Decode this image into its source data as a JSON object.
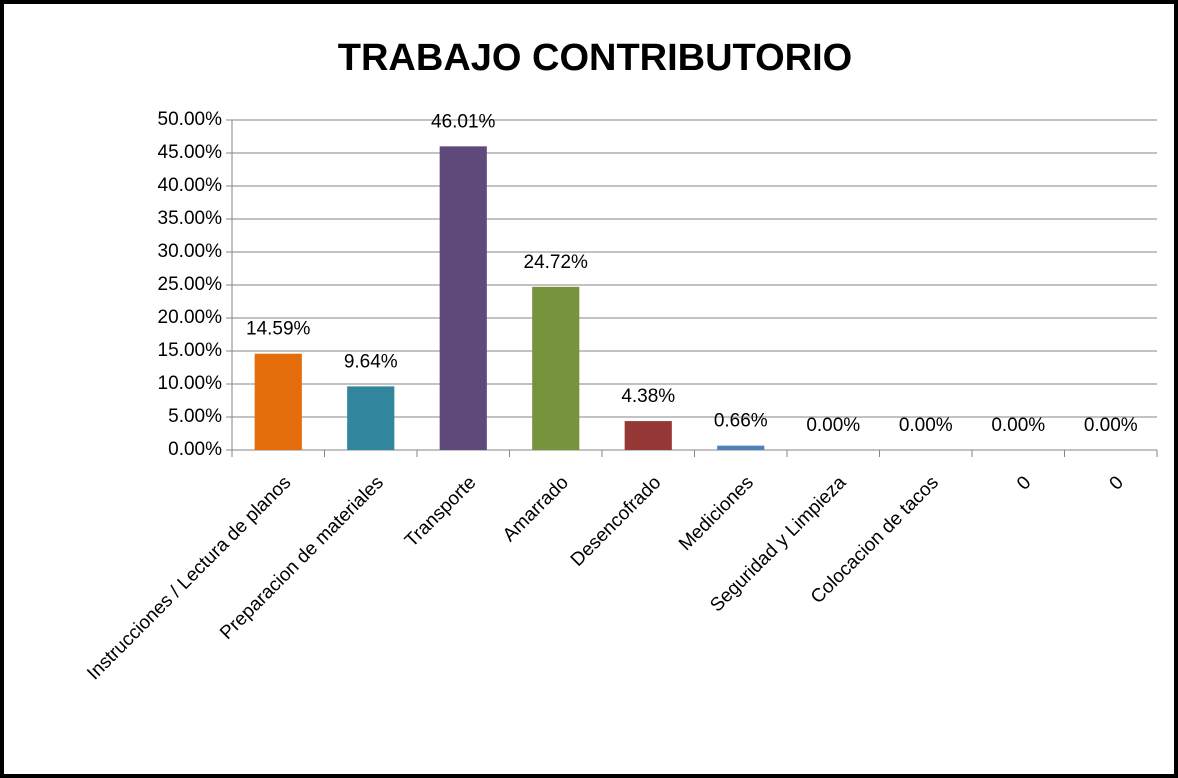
{
  "chart_data": {
    "type": "bar",
    "title": "TRABAJO CONTRIBUTORIO",
    "categories": [
      "Instrucciones / Lectura de planos",
      "Preparacion de materiales",
      "Transporte",
      "Amarrado",
      "Desencofrado",
      "Mediciones",
      "Seguridad y Limpieza",
      "Colocacion de tacos",
      "0",
      "0"
    ],
    "values": [
      14.59,
      9.64,
      46.01,
      24.72,
      4.38,
      0.66,
      0,
      0,
      0,
      0
    ],
    "value_labels": [
      "14.59%",
      "9.64%",
      "46.01%",
      "24.72%",
      "4.38%",
      "0.66%",
      "0.00%",
      "0.00%",
      "0.00%",
      "0.00%"
    ],
    "colors": [
      "#e46c0a",
      "#31859c",
      "#604a7b",
      "#77933c",
      "#953735",
      "#4f81bd",
      "#4f81bd",
      "#4f81bd",
      "#4f81bd",
      "#4f81bd"
    ],
    "ylim": [
      0,
      50
    ],
    "yticks": [
      {
        "value": 0,
        "label": "0.00%"
      },
      {
        "value": 5,
        "label": "5.00%"
      },
      {
        "value": 10,
        "label": "10.00%"
      },
      {
        "value": 15,
        "label": "15.00%"
      },
      {
        "value": 20,
        "label": "20.00%"
      },
      {
        "value": 25,
        "label": "25.00%"
      },
      {
        "value": 30,
        "label": "30.00%"
      },
      {
        "value": 35,
        "label": "35.00%"
      },
      {
        "value": 40,
        "label": "40.00%"
      },
      {
        "value": 45,
        "label": "45.00%"
      },
      {
        "value": 50,
        "label": "50.00%"
      }
    ],
    "grid": true
  }
}
